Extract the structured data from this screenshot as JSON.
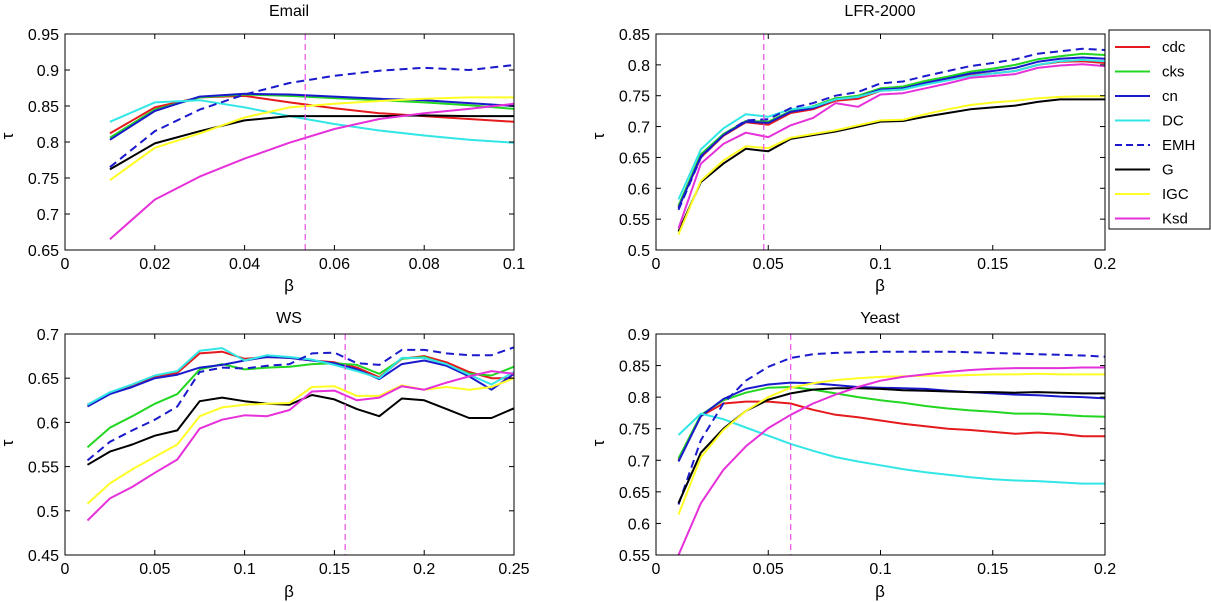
{
  "colors": {
    "cdc": "#e41a1c",
    "cks": "#22d622",
    "cn": "#1a1acc",
    "DC": "#33e6e6",
    "EMH": "#1a1acc",
    "G": "#000000",
    "IGC": "#ffff26",
    "Ksd": "#e630d9",
    "vline": "#e64ce6"
  },
  "legend": {
    "placement": "right of top-right panel",
    "entries": [
      {
        "name": "cdc",
        "color": "#e41a1c",
        "dashed": false
      },
      {
        "name": "cks",
        "color": "#22d622",
        "dashed": false
      },
      {
        "name": "cn",
        "color": "#1a1acc",
        "dashed": false
      },
      {
        "name": "DC",
        "color": "#33e6e6",
        "dashed": false
      },
      {
        "name": "EMH",
        "color": "#1a1acc",
        "dashed": true
      },
      {
        "name": "G",
        "color": "#000000",
        "dashed": false
      },
      {
        "name": "IGC",
        "color": "#ffff26",
        "dashed": false
      },
      {
        "name": "Ksd",
        "color": "#e630d9",
        "dashed": false
      }
    ]
  },
  "chart_data": [
    {
      "type": "line",
      "title": "Email",
      "xlabel": "β",
      "ylabel": "τ",
      "xlim": [
        0,
        0.1
      ],
      "ylim": [
        0.65,
        0.95
      ],
      "xticks": [
        0,
        0.02,
        0.04,
        0.06,
        0.08,
        0.1
      ],
      "xtick_labels": [
        "0",
        "0.02",
        "0.04",
        "0.06",
        "0.08",
        "0.1"
      ],
      "yticks": [
        0.65,
        0.7,
        0.75,
        0.8,
        0.85,
        0.9,
        0.95
      ],
      "ytick_labels": [
        "0.65",
        "0.7",
        "0.75",
        "0.8",
        "0.85",
        "0.9",
        "0.95"
      ],
      "vline": 0.0535,
      "x": [
        0.01,
        0.02,
        0.03,
        0.04,
        0.05,
        0.06,
        0.07,
        0.08,
        0.09,
        0.1
      ],
      "series": [
        {
          "name": "cdc",
          "values": [
            0.812,
            0.848,
            0.862,
            0.864,
            0.855,
            0.847,
            0.84,
            0.836,
            0.832,
            0.828
          ]
        },
        {
          "name": "cks",
          "values": [
            0.806,
            0.845,
            0.862,
            0.866,
            0.864,
            0.861,
            0.858,
            0.855,
            0.851,
            0.846
          ]
        },
        {
          "name": "cn",
          "values": [
            0.803,
            0.843,
            0.863,
            0.867,
            0.866,
            0.863,
            0.86,
            0.858,
            0.854,
            0.85
          ]
        },
        {
          "name": "DC",
          "values": [
            0.828,
            0.855,
            0.858,
            0.848,
            0.836,
            0.825,
            0.816,
            0.809,
            0.803,
            0.799
          ]
        },
        {
          "name": "EMH",
          "values": [
            0.765,
            0.815,
            0.845,
            0.866,
            0.882,
            0.892,
            0.899,
            0.903,
            0.9,
            0.907
          ]
        },
        {
          "name": "G",
          "values": [
            0.762,
            0.798,
            0.815,
            0.83,
            0.836,
            0.836,
            0.836,
            0.837,
            0.836,
            0.836
          ]
        },
        {
          "name": "IGC",
          "values": [
            0.747,
            0.792,
            0.812,
            0.834,
            0.848,
            0.853,
            0.857,
            0.86,
            0.862,
            0.862
          ]
        },
        {
          "name": "Ksd",
          "values": [
            0.665,
            0.72,
            0.752,
            0.777,
            0.799,
            0.818,
            0.832,
            0.84,
            0.846,
            0.853
          ]
        }
      ]
    },
    {
      "type": "line",
      "title": "LFR-2000",
      "xlabel": "β",
      "ylabel": "τ",
      "xlim": [
        0,
        0.2
      ],
      "ylim": [
        0.5,
        0.85
      ],
      "xticks": [
        0,
        0.05,
        0.1,
        0.15,
        0.2
      ],
      "xtick_labels": [
        "0",
        "0.05",
        "0.1",
        "0.15",
        "0.2"
      ],
      "yticks": [
        0.5,
        0.55,
        0.6,
        0.65,
        0.7,
        0.75,
        0.8,
        0.85
      ],
      "ytick_labels": [
        "0.5",
        "0.55",
        "0.6",
        "0.65",
        "0.7",
        "0.75",
        "0.8",
        "0.85"
      ],
      "vline": 0.048,
      "x": [
        0.01,
        0.02,
        0.03,
        0.04,
        0.05,
        0.06,
        0.07,
        0.08,
        0.09,
        0.1,
        0.11,
        0.12,
        0.13,
        0.14,
        0.15,
        0.16,
        0.17,
        0.18,
        0.19,
        0.2
      ],
      "series": [
        {
          "name": "cdc",
          "values": [
            0.57,
            0.65,
            0.685,
            0.707,
            0.703,
            0.722,
            0.728,
            0.742,
            0.745,
            0.758,
            0.76,
            0.769,
            0.775,
            0.783,
            0.786,
            0.79,
            0.8,
            0.805,
            0.806,
            0.803
          ]
        },
        {
          "name": "cks",
          "values": [
            0.572,
            0.655,
            0.688,
            0.709,
            0.708,
            0.725,
            0.733,
            0.746,
            0.75,
            0.762,
            0.765,
            0.774,
            0.781,
            0.789,
            0.794,
            0.8,
            0.809,
            0.814,
            0.818,
            0.816
          ]
        },
        {
          "name": "cn",
          "values": [
            0.568,
            0.652,
            0.686,
            0.708,
            0.706,
            0.724,
            0.73,
            0.744,
            0.748,
            0.76,
            0.762,
            0.771,
            0.778,
            0.786,
            0.79,
            0.795,
            0.805,
            0.81,
            0.812,
            0.81
          ]
        },
        {
          "name": "DC",
          "values": [
            0.582,
            0.663,
            0.697,
            0.72,
            0.716,
            0.728,
            0.732,
            0.744,
            0.748,
            0.758,
            0.76,
            0.768,
            0.775,
            0.782,
            0.786,
            0.79,
            0.8,
            0.806,
            0.808,
            0.806
          ]
        },
        {
          "name": "EMH",
          "values": [
            0.565,
            0.65,
            0.686,
            0.71,
            0.712,
            0.73,
            0.738,
            0.75,
            0.756,
            0.77,
            0.773,
            0.782,
            0.79,
            0.798,
            0.803,
            0.809,
            0.818,
            0.822,
            0.826,
            0.824
          ]
        },
        {
          "name": "G",
          "values": [
            0.53,
            0.61,
            0.64,
            0.664,
            0.66,
            0.68,
            0.686,
            0.692,
            0.7,
            0.708,
            0.709,
            0.716,
            0.722,
            0.728,
            0.731,
            0.734,
            0.74,
            0.744,
            0.744,
            0.744
          ]
        },
        {
          "name": "IGC",
          "values": [
            0.525,
            0.612,
            0.645,
            0.668,
            0.665,
            0.682,
            0.688,
            0.694,
            0.702,
            0.71,
            0.711,
            0.72,
            0.728,
            0.735,
            0.739,
            0.742,
            0.746,
            0.748,
            0.749,
            0.749
          ]
        },
        {
          "name": "Ksd",
          "values": [
            0.535,
            0.64,
            0.672,
            0.69,
            0.683,
            0.702,
            0.714,
            0.738,
            0.732,
            0.752,
            0.754,
            0.762,
            0.77,
            0.779,
            0.782,
            0.785,
            0.795,
            0.799,
            0.801,
            0.798
          ]
        }
      ]
    },
    {
      "type": "line",
      "title": "WS",
      "xlabel": "β",
      "ylabel": "τ",
      "xlim": [
        0,
        0.25
      ],
      "ylim": [
        0.45,
        0.7
      ],
      "xticks": [
        0,
        0.05,
        0.1,
        0.15,
        0.2,
        0.25
      ],
      "xtick_labels": [
        "0",
        "0.05",
        "0.1",
        "0.15",
        "0.2",
        "0.25"
      ],
      "yticks": [
        0.45,
        0.5,
        0.55,
        0.6,
        0.65,
        0.7
      ],
      "ytick_labels": [
        "0.45",
        "0.5",
        "0.55",
        "0.6",
        "0.65",
        "0.7"
      ],
      "vline": 0.156,
      "x": [
        0.0125,
        0.025,
        0.0375,
        0.05,
        0.0625,
        0.075,
        0.0875,
        0.1,
        0.1125,
        0.125,
        0.1375,
        0.15,
        0.1625,
        0.175,
        0.1875,
        0.2,
        0.2125,
        0.225,
        0.2375,
        0.25
      ],
      "series": [
        {
          "name": "cdc",
          "values": [
            0.62,
            0.633,
            0.642,
            0.652,
            0.656,
            0.678,
            0.68,
            0.672,
            0.674,
            0.673,
            0.67,
            0.668,
            0.662,
            0.651,
            0.672,
            0.675,
            0.668,
            0.657,
            0.65,
            0.65
          ]
        },
        {
          "name": "cks",
          "values": [
            0.572,
            0.594,
            0.607,
            0.621,
            0.632,
            0.66,
            0.666,
            0.66,
            0.662,
            0.663,
            0.666,
            0.667,
            0.665,
            0.655,
            0.672,
            0.674,
            0.665,
            0.655,
            0.653,
            0.663
          ]
        },
        {
          "name": "cn",
          "values": [
            0.618,
            0.632,
            0.64,
            0.65,
            0.654,
            0.662,
            0.665,
            0.67,
            0.674,
            0.673,
            0.67,
            0.667,
            0.66,
            0.649,
            0.666,
            0.67,
            0.664,
            0.652,
            0.637,
            0.655
          ]
        },
        {
          "name": "DC",
          "values": [
            0.62,
            0.634,
            0.643,
            0.653,
            0.658,
            0.681,
            0.684,
            0.67,
            0.676,
            0.674,
            0.671,
            0.665,
            0.658,
            0.65,
            0.673,
            0.673,
            0.666,
            0.654,
            0.643,
            0.657
          ]
        },
        {
          "name": "EMH",
          "values": [
            0.557,
            0.578,
            0.591,
            0.603,
            0.618,
            0.657,
            0.662,
            0.661,
            0.664,
            0.666,
            0.678,
            0.679,
            0.667,
            0.665,
            0.682,
            0.682,
            0.678,
            0.676,
            0.676,
            0.685
          ]
        },
        {
          "name": "G",
          "values": [
            0.552,
            0.567,
            0.575,
            0.585,
            0.591,
            0.624,
            0.628,
            0.624,
            0.621,
            0.62,
            0.631,
            0.626,
            0.615,
            0.607,
            0.627,
            0.625,
            0.615,
            0.605,
            0.605,
            0.616
          ]
        },
        {
          "name": "IGC",
          "values": [
            0.508,
            0.531,
            0.547,
            0.561,
            0.575,
            0.607,
            0.617,
            0.62,
            0.621,
            0.622,
            0.64,
            0.641,
            0.63,
            0.63,
            0.642,
            0.637,
            0.64,
            0.637,
            0.64,
            0.65
          ]
        },
        {
          "name": "Ksd",
          "values": [
            0.489,
            0.514,
            0.527,
            0.543,
            0.558,
            0.593,
            0.603,
            0.608,
            0.607,
            0.614,
            0.635,
            0.636,
            0.625,
            0.628,
            0.641,
            0.637,
            0.645,
            0.652,
            0.658,
            0.655
          ]
        }
      ]
    },
    {
      "type": "line",
      "title": "Yeast",
      "xlabel": "β",
      "ylabel": "τ",
      "xlim": [
        0,
        0.2
      ],
      "ylim": [
        0.55,
        0.9
      ],
      "xticks": [
        0,
        0.05,
        0.1,
        0.15,
        0.2
      ],
      "xtick_labels": [
        "0",
        "0.05",
        "0.1",
        "0.15",
        "0.2"
      ],
      "yticks": [
        0.55,
        0.6,
        0.65,
        0.7,
        0.75,
        0.8,
        0.85,
        0.9
      ],
      "ytick_labels": [
        "0.55",
        "0.6",
        "0.65",
        "0.7",
        "0.75",
        "0.8",
        "0.85",
        "0.9"
      ],
      "vline": 0.06,
      "x": [
        0.01,
        0.02,
        0.03,
        0.04,
        0.05,
        0.06,
        0.07,
        0.08,
        0.09,
        0.1,
        0.11,
        0.12,
        0.13,
        0.14,
        0.15,
        0.16,
        0.17,
        0.18,
        0.19,
        0.2
      ],
      "series": [
        {
          "name": "cdc",
          "values": [
            0.7,
            0.77,
            0.79,
            0.793,
            0.793,
            0.79,
            0.78,
            0.772,
            0.768,
            0.763,
            0.758,
            0.754,
            0.75,
            0.748,
            0.745,
            0.742,
            0.744,
            0.742,
            0.738,
            0.738
          ]
        },
        {
          "name": "cks",
          "values": [
            0.703,
            0.772,
            0.795,
            0.807,
            0.815,
            0.816,
            0.812,
            0.806,
            0.8,
            0.795,
            0.791,
            0.786,
            0.782,
            0.779,
            0.777,
            0.774,
            0.774,
            0.772,
            0.77,
            0.769
          ]
        },
        {
          "name": "cn",
          "values": [
            0.698,
            0.77,
            0.797,
            0.813,
            0.82,
            0.823,
            0.822,
            0.819,
            0.816,
            0.815,
            0.814,
            0.813,
            0.81,
            0.808,
            0.806,
            0.804,
            0.803,
            0.801,
            0.8,
            0.798
          ]
        },
        {
          "name": "DC",
          "values": [
            0.74,
            0.774,
            0.765,
            0.752,
            0.739,
            0.726,
            0.715,
            0.705,
            0.698,
            0.692,
            0.686,
            0.681,
            0.677,
            0.673,
            0.67,
            0.668,
            0.667,
            0.665,
            0.663,
            0.663
          ]
        },
        {
          "name": "EMH",
          "values": [
            0.63,
            0.732,
            0.79,
            0.826,
            0.848,
            0.862,
            0.868,
            0.87,
            0.871,
            0.872,
            0.872,
            0.872,
            0.872,
            0.871,
            0.87,
            0.869,
            0.868,
            0.867,
            0.866,
            0.864
          ]
        },
        {
          "name": "G",
          "values": [
            0.632,
            0.712,
            0.75,
            0.778,
            0.796,
            0.806,
            0.812,
            0.814,
            0.814,
            0.813,
            0.811,
            0.81,
            0.809,
            0.808,
            0.808,
            0.807,
            0.808,
            0.807,
            0.806,
            0.806
          ]
        },
        {
          "name": "IGC",
          "values": [
            0.614,
            0.705,
            0.748,
            0.778,
            0.8,
            0.815,
            0.822,
            0.827,
            0.83,
            0.832,
            0.833,
            0.834,
            0.834,
            0.835,
            0.836,
            0.836,
            0.837,
            0.836,
            0.836,
            0.836
          ]
        },
        {
          "name": "Ksd",
          "values": [
            0.55,
            0.632,
            0.685,
            0.722,
            0.751,
            0.772,
            0.79,
            0.804,
            0.816,
            0.826,
            0.832,
            0.836,
            0.84,
            0.843,
            0.845,
            0.846,
            0.846,
            0.846,
            0.847,
            0.847
          ]
        }
      ]
    }
  ]
}
